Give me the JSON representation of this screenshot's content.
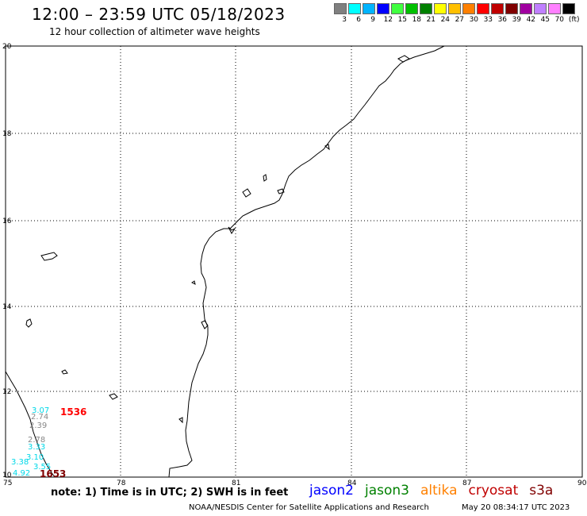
{
  "header": {
    "title": "12:00 – 23:59 UTC 05/18/2023",
    "subtitle": "12 hour collection of altimeter wave heights"
  },
  "color_scale": {
    "colors": [
      "#808080",
      "#00ffff",
      "#00b4ff",
      "#0000ff",
      "#40ff40",
      "#00c000",
      "#008000",
      "#ffff00",
      "#ffc000",
      "#ff8000",
      "#ff0000",
      "#c00000",
      "#800000",
      "#a000a0",
      "#c080ff",
      "#ff80ff",
      "#000000"
    ],
    "labels": [
      "3",
      "6",
      "9",
      "12",
      "15",
      "18",
      "21",
      "24",
      "27",
      "30",
      "33",
      "36",
      "39",
      "42",
      "45",
      "70",
      "(ft)"
    ]
  },
  "map": {
    "lon_ticks": [
      "75",
      "78",
      "81",
      "84",
      "87",
      "90"
    ],
    "lat_ticks": [
      "10",
      "12",
      "14",
      "16",
      "18",
      "20"
    ]
  },
  "observations": [
    {
      "swh": "3.07",
      "color": "#00d8e8"
    },
    {
      "swh": "2.74",
      "color": "#888888"
    },
    {
      "swh": "2.39",
      "color": "#888888"
    },
    {
      "swh": "2.78",
      "color": "#888888"
    },
    {
      "swh": "3.33",
      "color": "#00d8e8"
    },
    {
      "swh": "3.10",
      "color": "#00d8e8"
    },
    {
      "swh": "3.38",
      "color": "#00d8e8"
    },
    {
      "swh": "3.55",
      "color": "#00d8e8"
    },
    {
      "swh": "4.92",
      "color": "#00d8e8"
    }
  ],
  "pass_times": [
    {
      "time": "1536",
      "color": "#ff0000"
    },
    {
      "time": "1653",
      "color": "#800000"
    }
  ],
  "footer": {
    "note": "note: 1) Time is in UTC; 2) SWH is in feet",
    "satellites": [
      {
        "name": "jason2",
        "color": "#0000ff"
      },
      {
        "name": "jason3",
        "color": "#008000"
      },
      {
        "name": "altika",
        "color": "#ff8000"
      },
      {
        "name": "cryosat",
        "color": "#c00000"
      },
      {
        "name": "s3a",
        "color": "#800000"
      }
    ],
    "credit": "NOAA/NESDIS Center for Satellite Applications and Research",
    "timestamp": "May 20 08:34:17 UTC 2023"
  }
}
